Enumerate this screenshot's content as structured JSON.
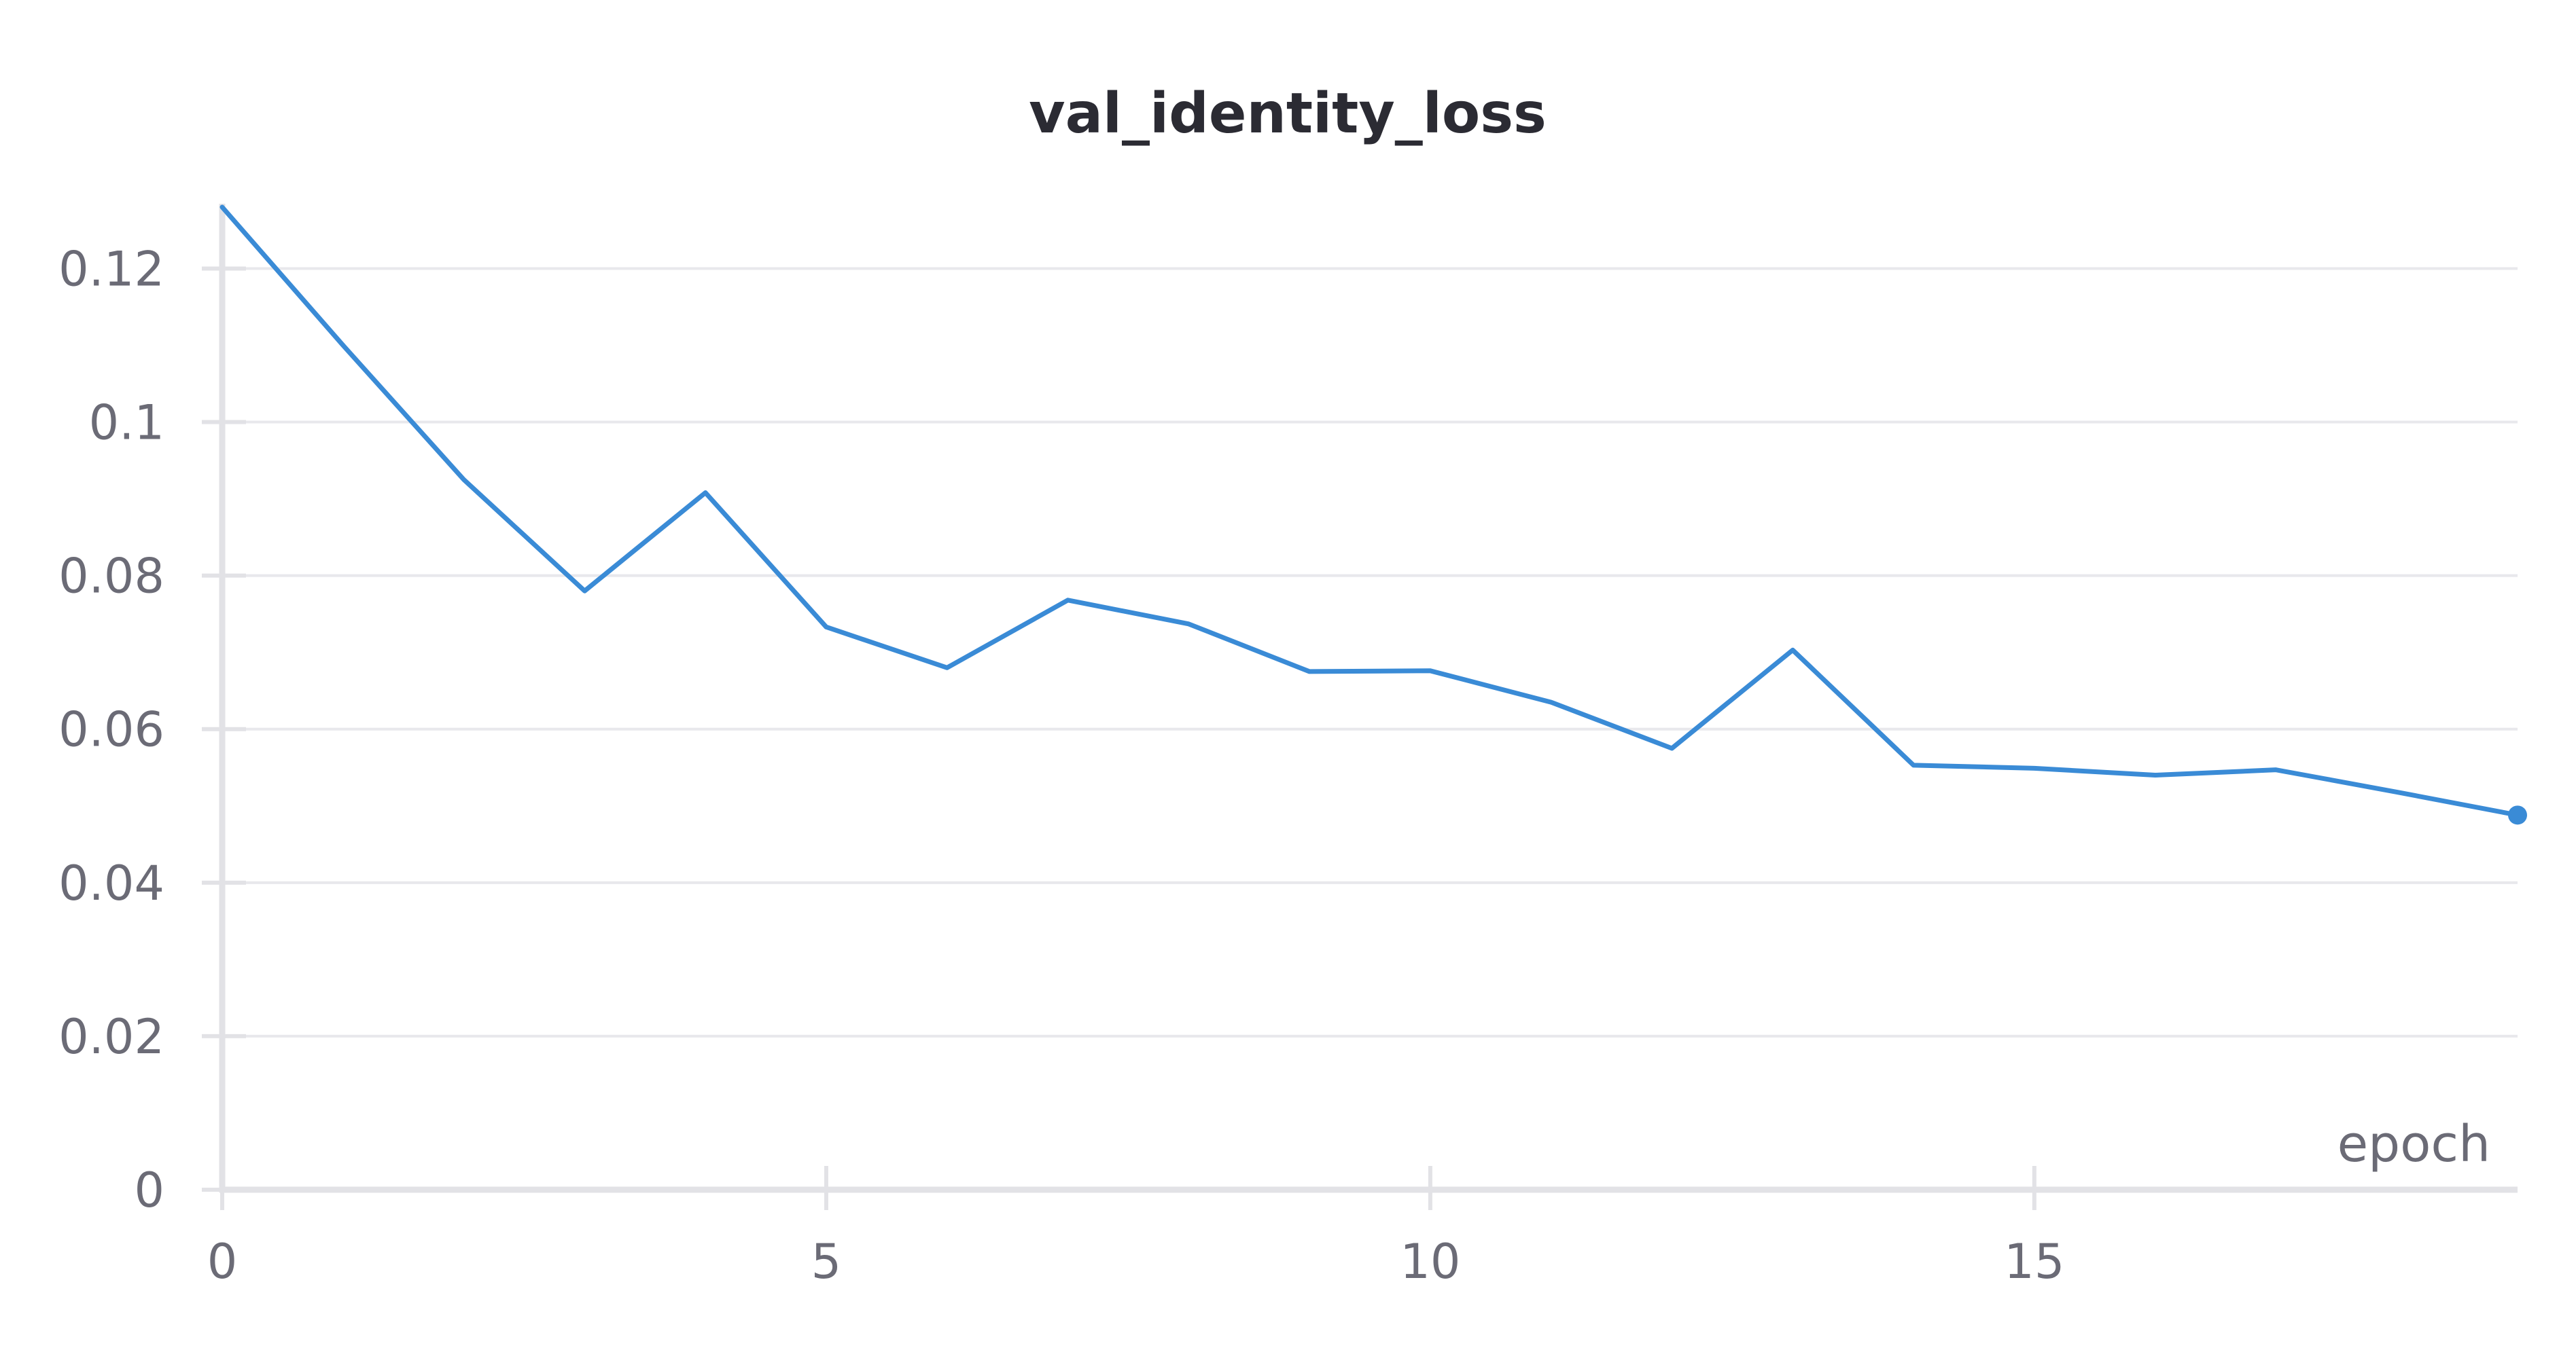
{
  "chart_data": {
    "type": "line",
    "title": "val_identity_loss",
    "xlabel": "epoch",
    "ylabel": "",
    "xlim": [
      0,
      19
    ],
    "ylim": [
      0,
      0.128
    ],
    "x_ticks": [
      "0",
      "5",
      "10",
      "15"
    ],
    "x_tick_values": [
      0,
      5,
      10,
      15
    ],
    "y_ticks": [
      "0",
      "0.02",
      "0.04",
      "0.06",
      "0.08",
      "0.1",
      "0.12"
    ],
    "y_tick_values": [
      0,
      0.02,
      0.04,
      0.06,
      0.08,
      0.1,
      0.12
    ],
    "grid": true,
    "colors": {
      "series": "#3a8bd6"
    },
    "series": [
      {
        "x": [
          0,
          1,
          2,
          3,
          4,
          5,
          6,
          7,
          8,
          9,
          10,
          11,
          12,
          13,
          14,
          15,
          16,
          17,
          18,
          19
        ],
        "values": [
          0.128,
          0.11,
          0.0925,
          0.078,
          0.0908,
          0.0733,
          0.068,
          0.0768,
          0.0737,
          0.0675,
          0.0676,
          0.0635,
          0.0575,
          0.0703,
          0.0553,
          0.0549,
          0.054,
          0.0547,
          0.0518,
          0.0488
        ]
      }
    ]
  }
}
